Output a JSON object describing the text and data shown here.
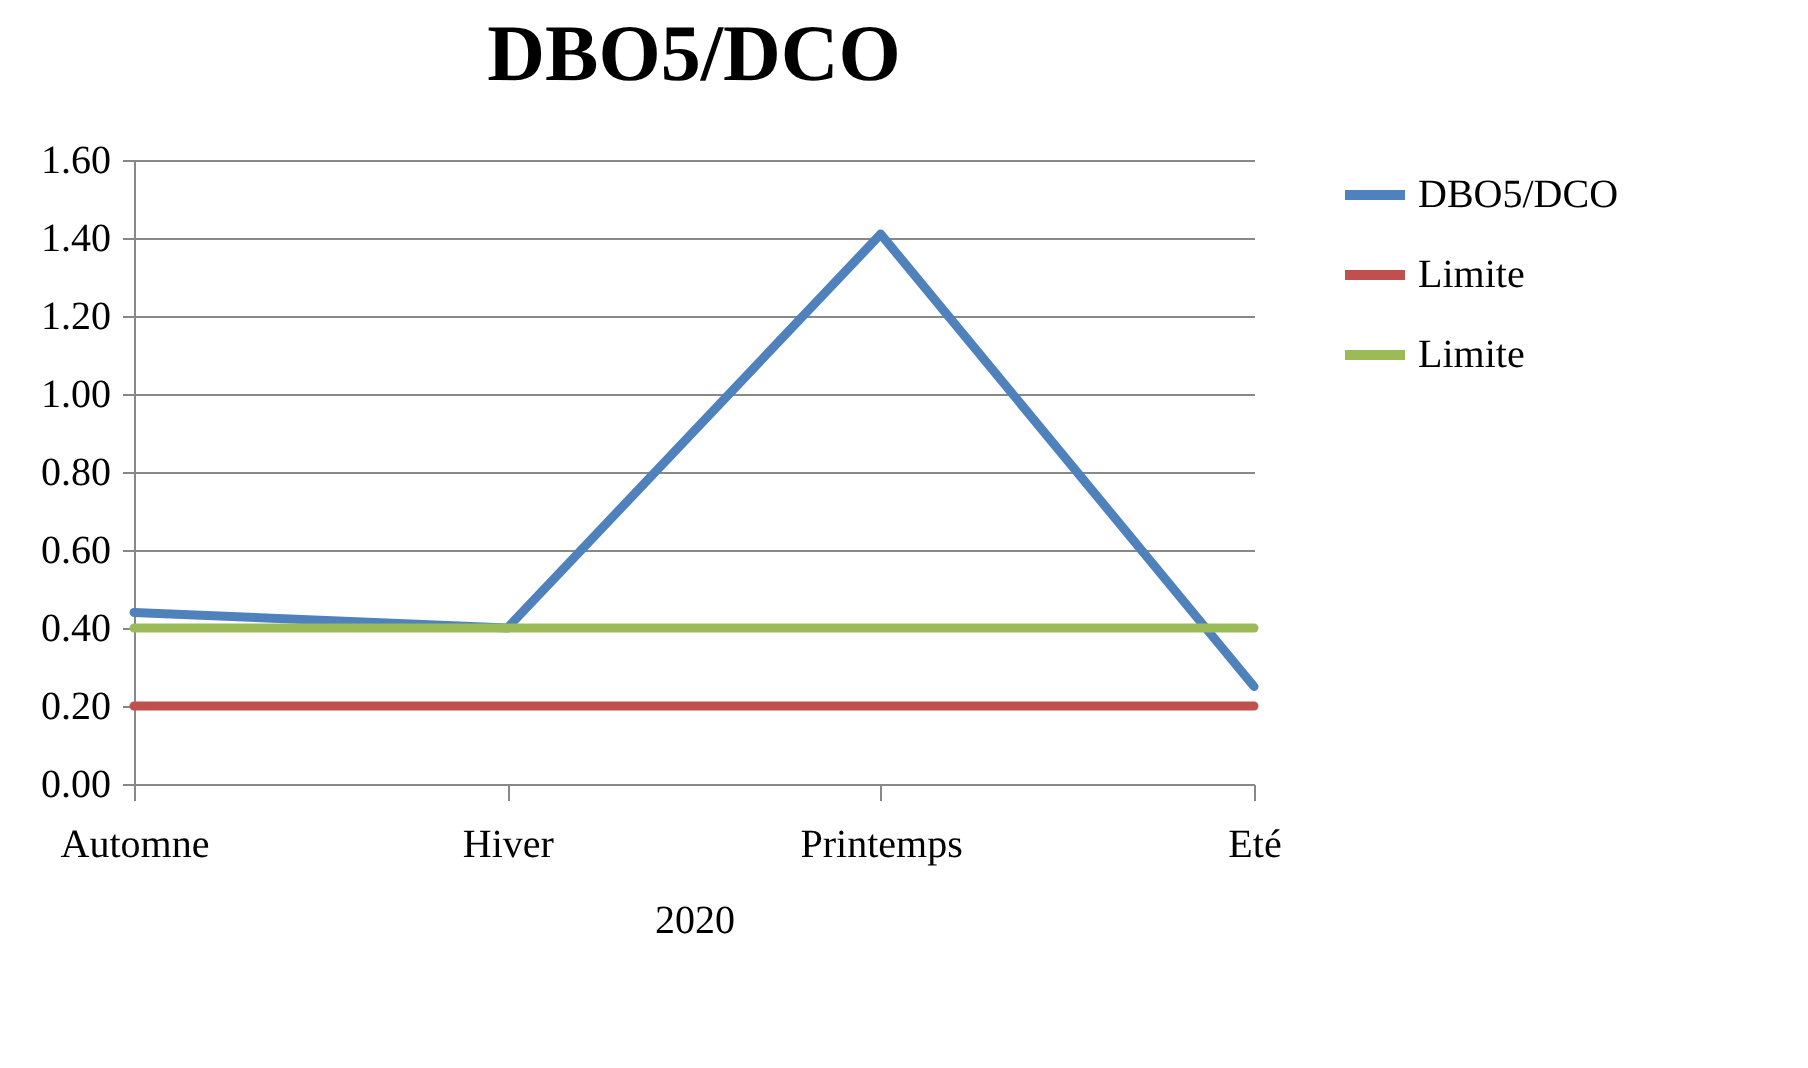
{
  "chart_data": {
    "type": "line",
    "title": "DBO5/DCO",
    "xlabel": "2020",
    "categories": [
      "Automne",
      "Hiver",
      "Printemps",
      "Eté"
    ],
    "series": [
      {
        "name": "DBO5/DCO",
        "color": "#4f81bd",
        "values": [
          0.44,
          0.4,
          1.41,
          0.25
        ]
      },
      {
        "name": "Limite",
        "color": "#c0504d",
        "values": [
          0.2,
          0.2,
          0.2,
          0.2
        ]
      },
      {
        "name": "Limite",
        "color": "#9bbb59",
        "values": [
          0.4,
          0.4,
          0.4,
          0.4
        ]
      }
    ],
    "ylim": [
      0,
      1.6
    ],
    "yticks": [
      {
        "value": 0,
        "label": "0.00"
      },
      {
        "value": 0.2,
        "label": "0.20"
      },
      {
        "value": 0.4,
        "label": "0.40"
      },
      {
        "value": 0.6,
        "label": "0.60"
      },
      {
        "value": 0.8,
        "label": "0.80"
      },
      {
        "value": 1.0,
        "label": "1.00"
      },
      {
        "value": 1.2,
        "label": "1.20"
      },
      {
        "value": 1.4,
        "label": "1.40"
      },
      {
        "value": 1.6,
        "label": "1.60"
      }
    ],
    "grid": "y",
    "legend": "right",
    "marker": "none",
    "line_style": "solid"
  }
}
